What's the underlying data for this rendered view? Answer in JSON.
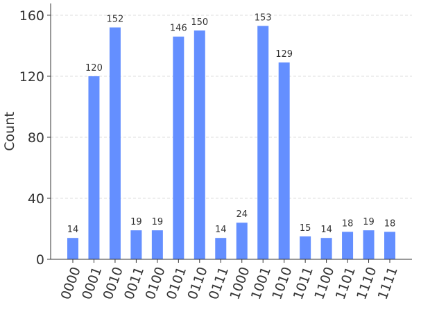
{
  "chart_data": {
    "type": "bar",
    "title": "",
    "xlabel": "",
    "ylabel": "Count",
    "categories": [
      "0000",
      "0001",
      "0010",
      "0011",
      "0100",
      "0101",
      "0110",
      "0111",
      "1000",
      "1001",
      "1010",
      "1011",
      "1100",
      "1101",
      "1110",
      "1111"
    ],
    "values": [
      14,
      120,
      152,
      19,
      19,
      146,
      150,
      14,
      24,
      153,
      129,
      15,
      14,
      18,
      19,
      18
    ],
    "yticks": [
      0,
      40,
      80,
      120,
      160
    ],
    "ylim": [
      0,
      167.7
    ],
    "grid": true,
    "bar_color": "#648fff",
    "data_labels": true
  }
}
